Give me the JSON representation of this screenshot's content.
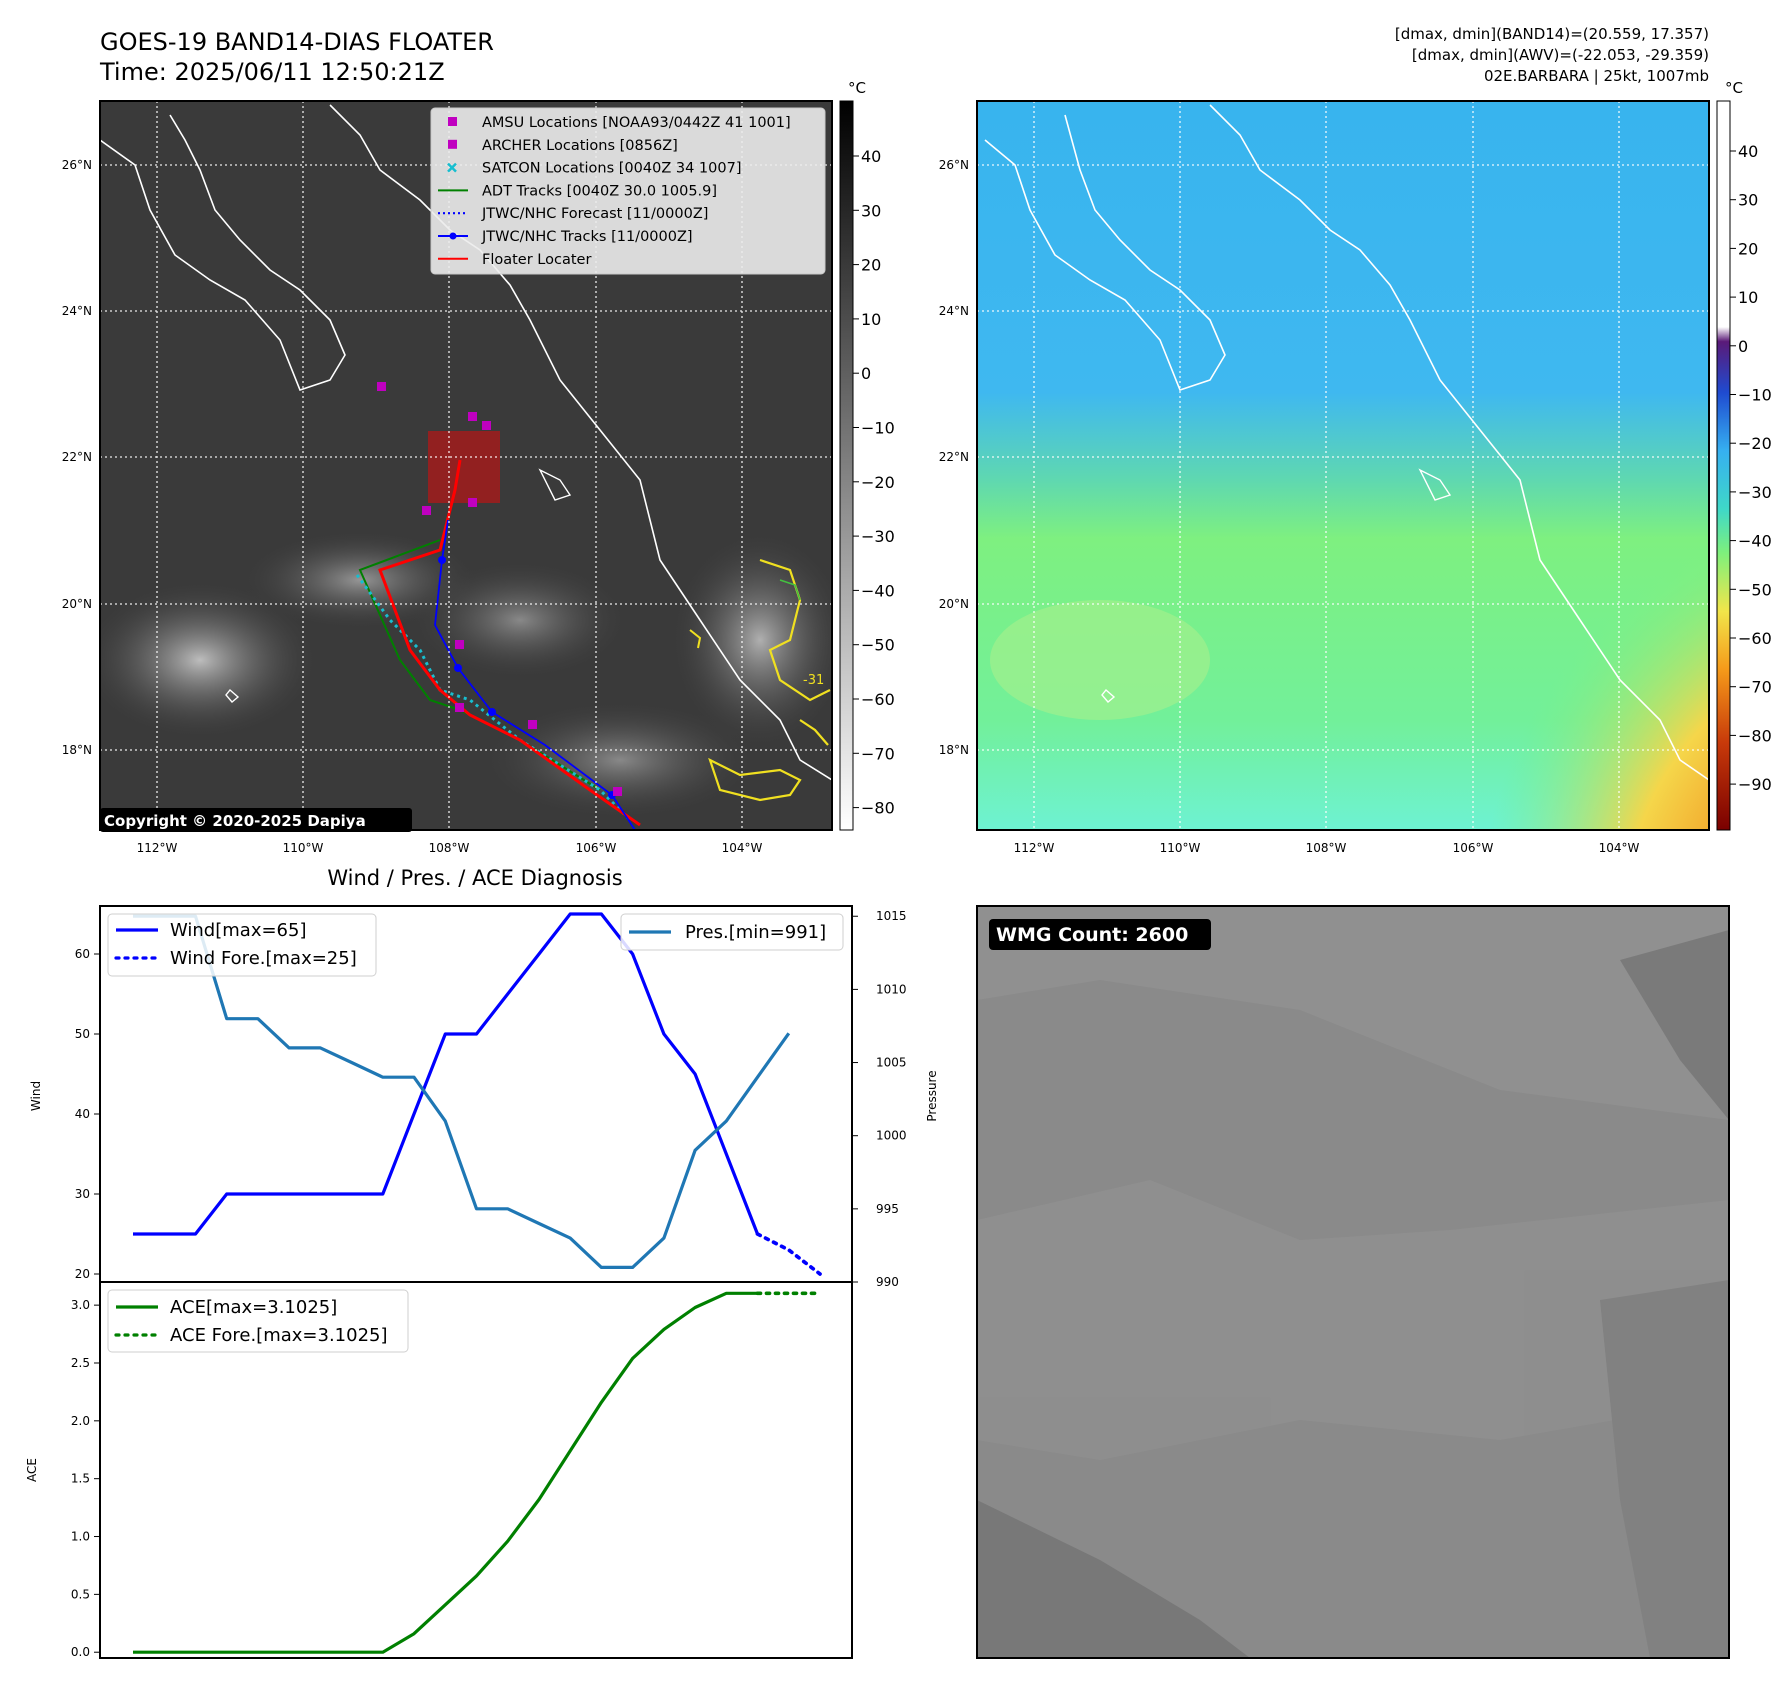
{
  "header": {
    "title": "GOES-19 BAND14-DIAS FLOATER",
    "time": "Time: 2025/06/11 12:50:21Z",
    "info_line1": "[dmax, dmin](BAND14)=(20.559, 17.357)",
    "info_line2": "[dmax, dmin](AWV)=(-22.053, -29.359)",
    "info_line3": "02E.BARBARA | 25kt, 1007mb"
  },
  "map_axes": {
    "lat_labels": [
      "26°N",
      "24°N",
      "22°N",
      "20°N",
      "18°N"
    ],
    "lon_labels": [
      "112°W",
      "110°W",
      "108°W",
      "106°W",
      "104°W"
    ]
  },
  "ir_panel": {
    "colorbar_unit": "°C",
    "colorbar_ticks": [
      "40",
      "30",
      "20",
      "10",
      "0",
      "−10",
      "−20",
      "−30",
      "−40",
      "−50",
      "−60",
      "−70",
      "−80"
    ],
    "contour_label": "-31",
    "copyright": "Copyright © 2020-2025 Dapiya",
    "legend": [
      {
        "label": "AMSU Locations [NOAA93/0442Z 41 1001]",
        "marker": "square",
        "color": "#c000c0"
      },
      {
        "label": "ARCHER Locations [0856Z]",
        "marker": "square",
        "color": "#c000c0"
      },
      {
        "label": "SATCON Locations [0040Z 34 1007]",
        "marker": "x",
        "color": "#17becf"
      },
      {
        "label": "ADT Tracks [0040Z 30.0 1005.9]",
        "marker": "line",
        "color": "#008000"
      },
      {
        "label": "JTWC/NHC Forecast [11/0000Z]",
        "marker": "dotted",
        "color": "#0000ff"
      },
      {
        "label": "JTWC/NHC Tracks [11/0000Z]",
        "marker": "line-dot",
        "color": "#0000ff"
      },
      {
        "label": "Floater Locater",
        "marker": "line",
        "color": "#ff0000"
      }
    ]
  },
  "wv_panel": {
    "colorbar_unit": "°C",
    "colorbar_ticks": [
      "40",
      "30",
      "20",
      "10",
      "0",
      "−10",
      "−20",
      "−30",
      "−40",
      "−50",
      "−60",
      "−70",
      "−80",
      "−90"
    ]
  },
  "diag_panel": {
    "title": "Wind / Pres. / ACE Diagnosis",
    "wind_ylabel": "Wind",
    "pressure_ylabel": "Pressure",
    "ace_ylabel": "ACE"
  },
  "wmg_panel": {
    "badge": "WMG Count: 2600"
  },
  "chart_data": [
    {
      "type": "line",
      "name": "wind-pressure",
      "x": [
        0,
        1,
        2,
        3,
        4,
        5,
        6,
        7,
        8,
        9,
        10,
        11,
        12,
        13,
        14,
        15,
        16,
        17,
        18,
        19,
        20,
        21,
        22
      ],
      "series": [
        {
          "name": "Wind[max=65]",
          "axis": "left",
          "color": "#0000ff",
          "style": "solid",
          "values": [
            25,
            25,
            25,
            30,
            30,
            30,
            30,
            30,
            30,
            40,
            50,
            50,
            55,
            60,
            65,
            65,
            60,
            50,
            45,
            35,
            25,
            null,
            null
          ]
        },
        {
          "name": "Wind Fore.[max=25]",
          "axis": "left",
          "color": "#0000ff",
          "style": "dotted",
          "values": [
            null,
            null,
            null,
            null,
            null,
            null,
            null,
            null,
            null,
            null,
            null,
            null,
            null,
            null,
            null,
            null,
            null,
            null,
            null,
            null,
            25,
            23,
            20
          ]
        },
        {
          "name": "Pres.[min=991]",
          "axis": "right",
          "color": "#1f77b4",
          "style": "solid",
          "values": [
            1015,
            1015,
            1015,
            1008,
            1008,
            1006,
            1006,
            1005,
            1004,
            1004,
            1001,
            995,
            995,
            994,
            993,
            991,
            991,
            993,
            999,
            1001,
            1004,
            1007,
            null
          ]
        }
      ],
      "ylim_left": [
        19,
        66
      ],
      "yticks_left": [
        20,
        30,
        40,
        50,
        60
      ],
      "ylim_right": [
        990,
        1015.7
      ],
      "yticks_right": [
        990,
        995,
        1000,
        1005,
        1010,
        1015
      ],
      "ylabel": "Wind",
      "ylabel_right": "Pressure",
      "legend_left": "upper left",
      "legend_right": "upper right"
    },
    {
      "type": "line",
      "name": "ace",
      "x": [
        0,
        1,
        2,
        3,
        4,
        5,
        6,
        7,
        8,
        9,
        10,
        11,
        12,
        13,
        14,
        15,
        16,
        17,
        18,
        19,
        20,
        21,
        22
      ],
      "series": [
        {
          "name": "ACE[max=3.1025]",
          "color": "#008000",
          "style": "solid",
          "values": [
            0,
            0,
            0,
            0,
            0,
            0,
            0,
            0,
            0,
            0.16,
            0.41,
            0.66,
            0.96,
            1.32,
            1.74,
            2.16,
            2.54,
            2.79,
            2.98,
            3.1025,
            3.1025,
            null,
            null
          ]
        },
        {
          "name": "ACE Fore.[max=3.1025]",
          "color": "#008000",
          "style": "dotted",
          "values": [
            null,
            null,
            null,
            null,
            null,
            null,
            null,
            null,
            null,
            null,
            null,
            null,
            null,
            null,
            null,
            null,
            null,
            null,
            null,
            null,
            3.1025,
            3.1025,
            3.1025
          ]
        }
      ],
      "ylim": [
        -0.05,
        3.2
      ],
      "yticks": [
        0.0,
        0.5,
        1.0,
        1.5,
        2.0,
        2.5,
        3.0
      ],
      "ytick_labels": [
        "0.0",
        "0.5",
        "1.0",
        "1.5",
        "2.0",
        "2.5",
        "3.0"
      ],
      "ylabel": "ACE",
      "legend": "upper left"
    }
  ]
}
